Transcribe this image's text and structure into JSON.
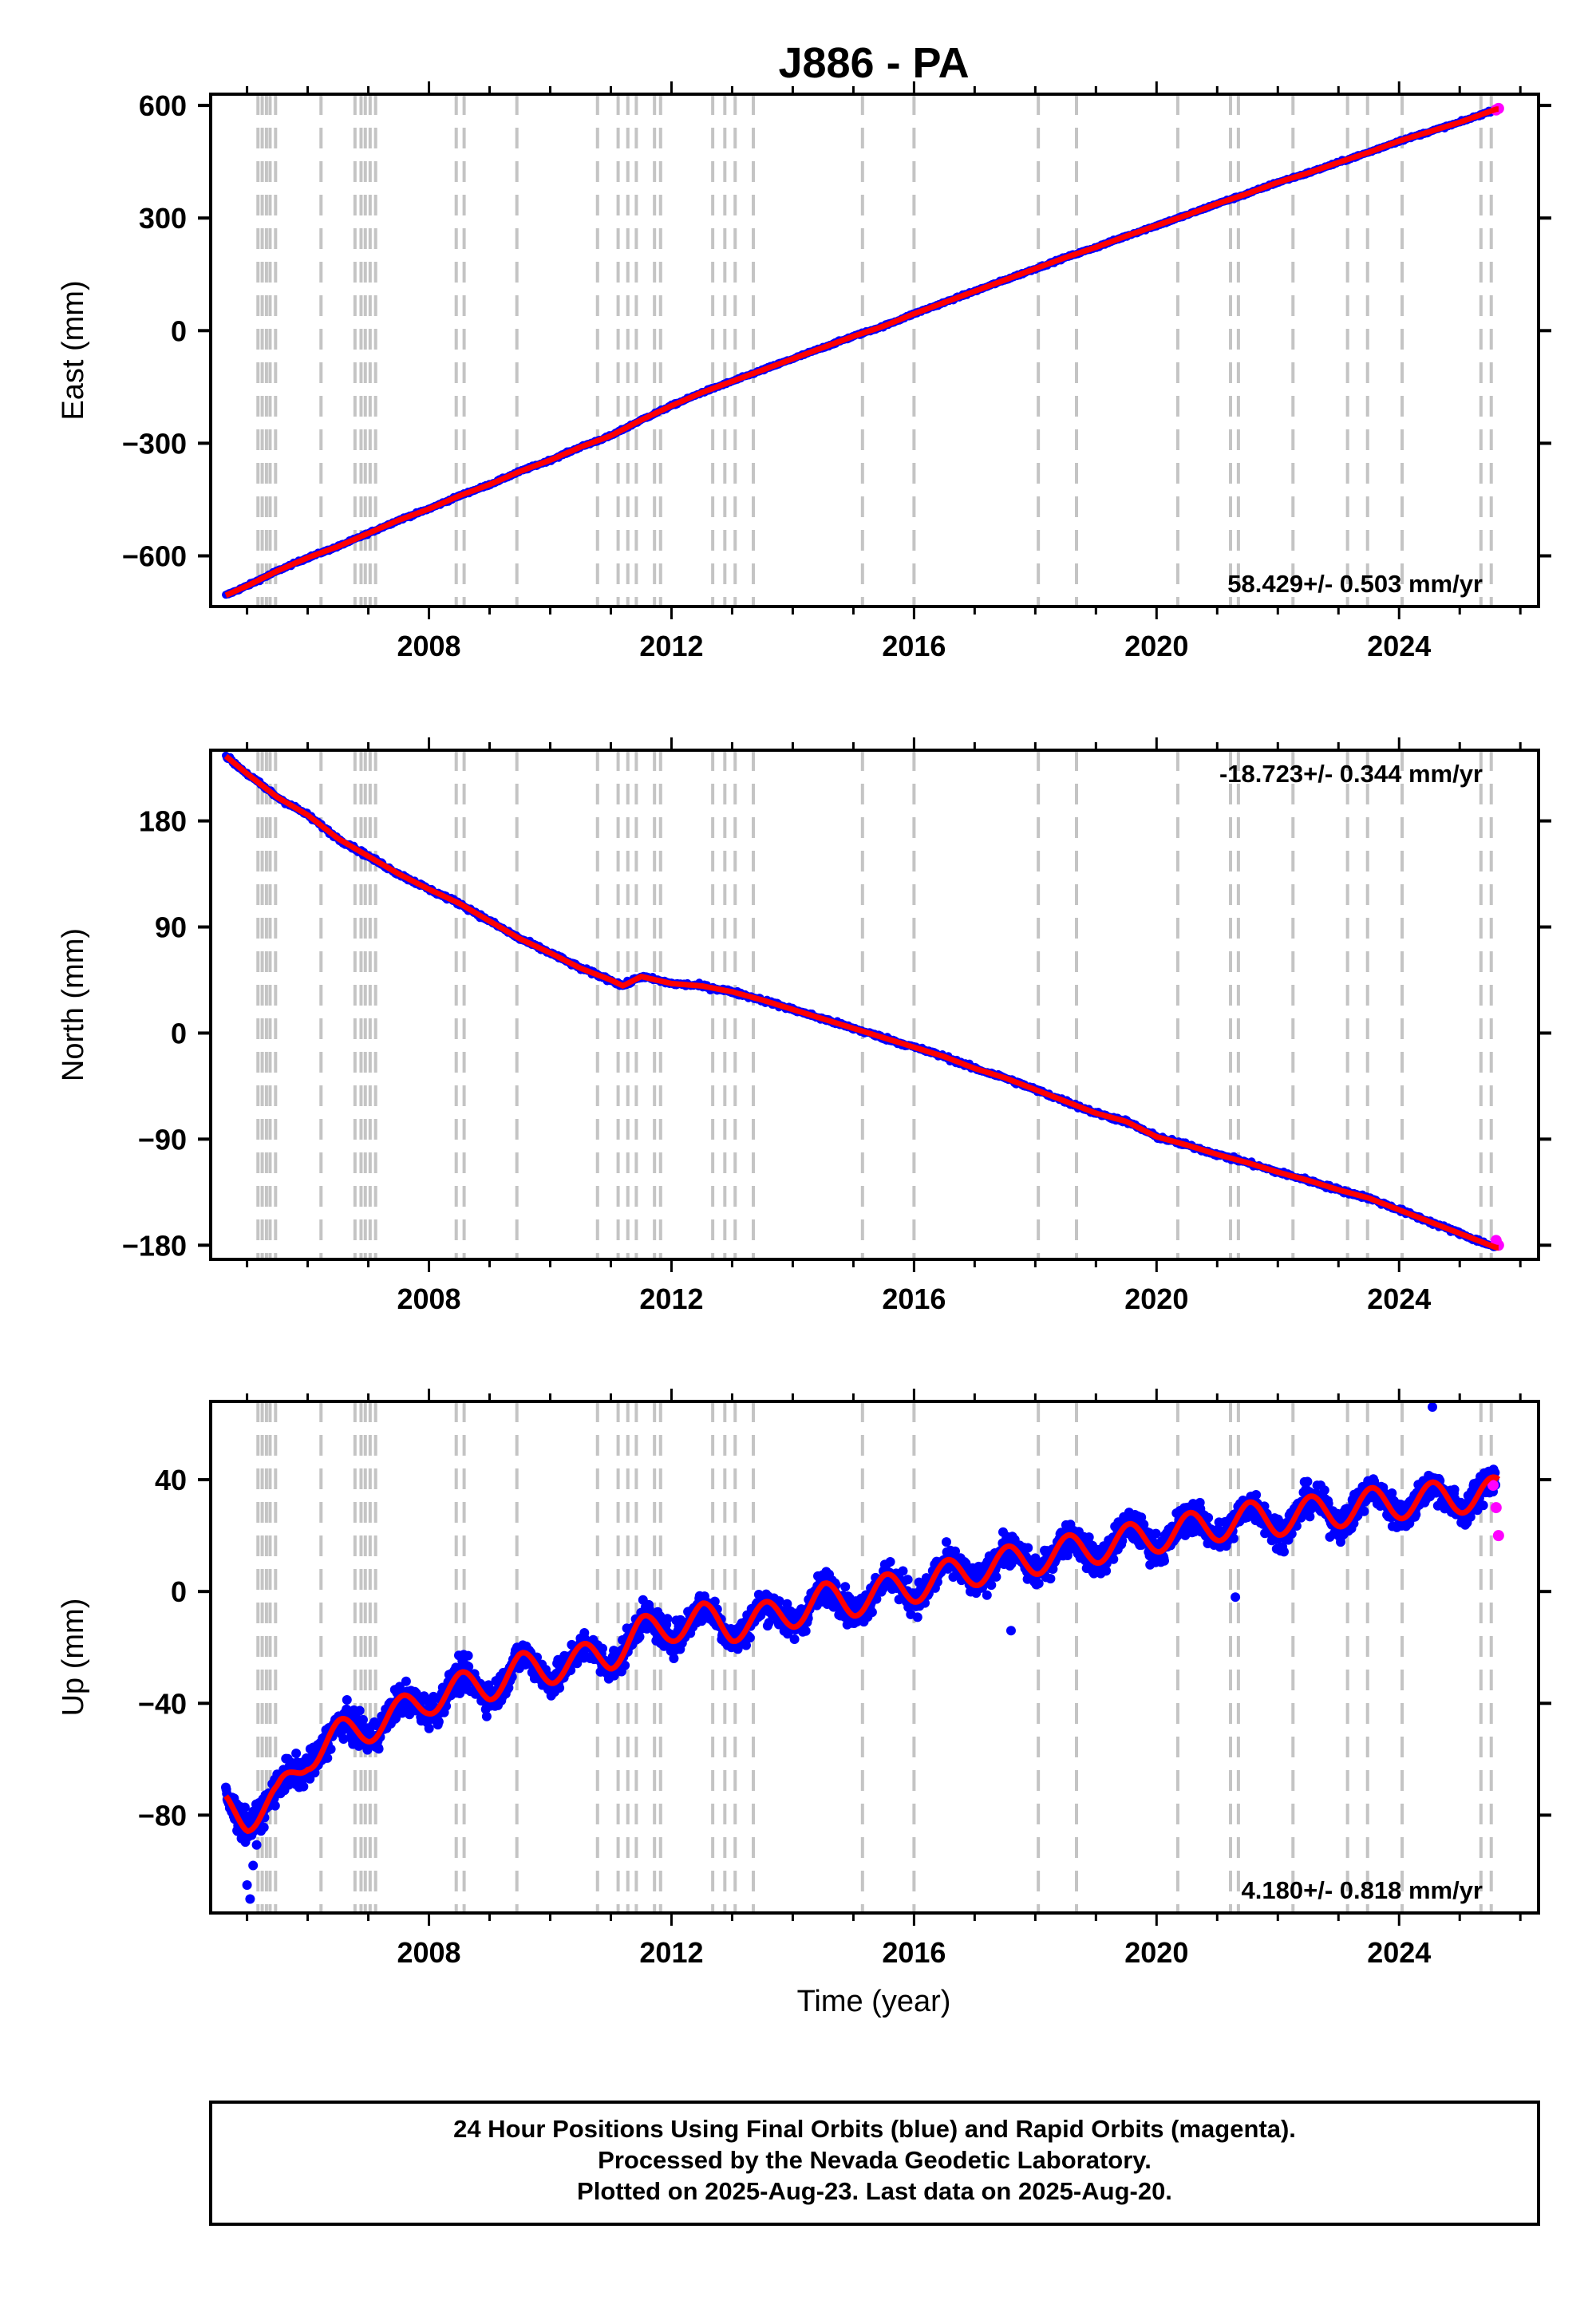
{
  "chart_data": {
    "title": "J886 - PA",
    "type": "scatter",
    "xlabel": "Time (year)",
    "xlim": [
      2004.4,
      2026.3
    ],
    "xticks": [
      2008,
      2012,
      2016,
      2020,
      2024
    ],
    "xtick_labels": [
      "2008",
      "2012",
      "2016",
      "2020",
      "2024"
    ],
    "data_start": 2004.65,
    "data_end": 2025.64,
    "equipment_change_dates": [
      2005.18,
      2005.25,
      2005.32,
      2005.38,
      2005.47,
      2006.22,
      2006.78,
      2006.88,
      2006.95,
      2007.03,
      2007.12,
      2008.45,
      2008.58,
      2009.45,
      2010.78,
      2011.12,
      2011.28,
      2011.42,
      2011.72,
      2011.82,
      2012.68,
      2012.88,
      2013.05,
      2013.35,
      2015.15,
      2016.0,
      2018.05,
      2018.68,
      2020.35,
      2021.22,
      2021.35,
      2022.25,
      2023.15,
      2023.48,
      2024.05,
      2025.35,
      2025.52
    ],
    "legend": {
      "final": "blue",
      "rapid": "magenta",
      "model": "red"
    },
    "panels": [
      {
        "name": "east",
        "ylabel": "East (mm)",
        "ylim": [
          -735,
          630
        ],
        "yticks": [
          600,
          300,
          0,
          -300,
          -600
        ],
        "ytick_labels": [
          "600",
          "300",
          "0",
          "−300",
          "−600"
        ],
        "rate": "58.429+/- 0.503 mm/yr",
        "rate_position": "bottom-right",
        "series": [
          {
            "name": "Final Orbits",
            "color": "#0000ff",
            "x": [
              2004.65,
              2005.0,
              2005.5,
              2006.0,
              2006.5,
              2007.0,
              2007.5,
              2008.0,
              2008.5,
              2009.0,
              2009.5,
              2010.0,
              2010.5,
              2011.0,
              2011.5,
              2012.0,
              2012.5,
              2013.0,
              2013.5,
              2014.0,
              2014.5,
              2015.0,
              2015.5,
              2016.0,
              2016.5,
              2017.0,
              2017.5,
              2018.0,
              2018.5,
              2019.0,
              2019.5,
              2020.0,
              2020.5,
              2021.0,
              2021.5,
              2022.0,
              2022.5,
              2023.0,
              2023.5,
              2024.0,
              2024.5,
              2025.0,
              2025.6
            ],
            "y": [
              -705,
              -680,
              -640,
              -605,
              -575,
              -540,
              -505,
              -475,
              -440,
              -410,
              -375,
              -345,
              -310,
              -280,
              -238,
              -200,
              -165,
              -135,
              -105,
              -75,
              -45,
              -15,
              12,
              45,
              75,
              105,
              135,
              165,
              195,
              222,
              252,
              280,
              308,
              338,
              365,
              395,
              420,
              448,
              475,
              505,
              530,
              555,
              590
            ]
          },
          {
            "name": "Rapid Orbits",
            "color": "#ff00ff",
            "x": [
              2025.6,
              2025.64
            ],
            "y": [
              588,
              592
            ]
          }
        ]
      },
      {
        "name": "north",
        "ylabel": "North (mm)",
        "ylim": [
          -192,
          240
        ],
        "yticks": [
          180,
          90,
          0,
          -90,
          -180
        ],
        "ytick_labels": [
          "180",
          "90",
          "0",
          "−90",
          "−180"
        ],
        "rate": "-18.723+/- 0.344 mm/yr",
        "rate_position": "top-right",
        "series": [
          {
            "name": "Final Orbits",
            "color": "#0000ff",
            "x": [
              2004.65,
              2005.0,
              2005.5,
              2006.0,
              2006.5,
              2007.0,
              2007.5,
              2008.0,
              2008.5,
              2009.0,
              2009.5,
              2010.0,
              2010.5,
              2011.0,
              2011.2,
              2011.5,
              2012.0,
              2012.5,
              2013.0,
              2013.5,
              2014.0,
              2014.5,
              2015.0,
              2015.5,
              2016.0,
              2016.5,
              2017.0,
              2017.5,
              2018.0,
              2018.5,
              2019.0,
              2019.5,
              2020.0,
              2020.5,
              2021.0,
              2021.5,
              2022.0,
              2022.5,
              2023.0,
              2023.5,
              2024.0,
              2024.5,
              2025.0,
              2025.6
            ],
            "y": [
              235,
              220,
              200,
              185,
              165,
              150,
              135,
              122,
              110,
              95,
              80,
              68,
              55,
              45,
              40,
              48,
              42,
              40,
              35,
              28,
              20,
              12,
              4,
              -4,
              -12,
              -20,
              -30,
              -38,
              -48,
              -58,
              -68,
              -75,
              -88,
              -95,
              -103,
              -110,
              -118,
              -125,
              -133,
              -140,
              -150,
              -160,
              -170,
              -182
            ]
          },
          {
            "name": "Rapid Orbits",
            "color": "#ff00ff",
            "x": [
              2025.6,
              2025.64
            ],
            "y": [
              -176,
              -180
            ]
          }
        ]
      },
      {
        "name": "up",
        "ylabel": "Up (mm)",
        "ylim": [
          -115,
          68
        ],
        "yticks": [
          40,
          0,
          -40,
          -80
        ],
        "ytick_labels": [
          "40",
          "0",
          "−40",
          "−80"
        ],
        "rate": "4.180+/- 0.818 mm/yr",
        "rate_position": "bottom-right",
        "series": [
          {
            "name": "Final Orbits",
            "color": "#0000ff",
            "x": [
              2004.65,
              2005.0,
              2005.5,
              2006.0,
              2006.5,
              2007.0,
              2007.5,
              2008.0,
              2008.5,
              2009.0,
              2009.5,
              2010.0,
              2010.5,
              2011.0,
              2011.5,
              2012.0,
              2012.5,
              2013.0,
              2013.5,
              2014.0,
              2014.5,
              2015.0,
              2015.5,
              2016.0,
              2016.5,
              2017.0,
              2017.5,
              2018.0,
              2018.5,
              2019.0,
              2019.5,
              2020.0,
              2020.5,
              2021.0,
              2021.5,
              2022.0,
              2022.5,
              2023.0,
              2023.5,
              2024.0,
              2024.5,
              2025.0,
              2025.6
            ],
            "y": [
              -78,
              -80,
              -75,
              -58,
              -52,
              -48,
              -44,
              -38,
              -35,
              -33,
              -28,
              -27,
              -25,
              -22,
              -15,
              -12,
              -10,
              -12,
              -10,
              -7,
              -3,
              -3,
              0,
              2,
              5,
              8,
              10,
              12,
              14,
              16,
              18,
              20,
              22,
              24,
              26,
              26,
              28,
              29,
              31,
              32,
              33,
              34,
              35
            ]
          },
          {
            "name": "Rapid Orbits",
            "color": "#ff00ff",
            "x": [
              2025.55,
              2025.6,
              2025.64
            ],
            "y": [
              38,
              30,
              20
            ]
          }
        ]
      }
    ],
    "footer": [
      "24 Hour Positions Using Final Orbits (blue) and Rapid Orbits (magenta).",
      "Processed by the Nevada Geodetic Laboratory.",
      "Plotted on 2025-Aug-23. Last data on 2025-Aug-20."
    ]
  }
}
